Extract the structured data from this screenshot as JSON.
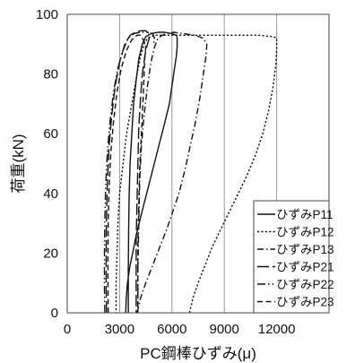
{
  "chart_data": {
    "type": "line",
    "xlabel": "PC鋼棒ひずみ(μ)",
    "ylabel": "荷重(kN)",
    "xlim": [
      0,
      15000
    ],
    "ylim": [
      0,
      100
    ],
    "x_ticks": [
      0,
      3000,
      6000,
      9000,
      12000
    ],
    "x_tick_labels": [
      "0",
      "3000",
      "6000",
      "9000",
      "12000"
    ],
    "y_ticks": [
      0,
      20,
      40,
      60,
      80,
      100
    ],
    "y_tick_labels": [
      "0",
      "20",
      "40",
      "60",
      "80",
      "100"
    ],
    "grid": "vertical",
    "legend_position": "bottom-right",
    "series": [
      {
        "name": "ひずみP11",
        "dash": "solid",
        "points": [
          [
            3350,
            0
          ],
          [
            3380,
            5
          ],
          [
            3450,
            10
          ],
          [
            3600,
            16
          ],
          [
            3750,
            20
          ],
          [
            3950,
            26
          ],
          [
            4200,
            32
          ],
          [
            4550,
            40
          ],
          [
            4900,
            48
          ],
          [
            5250,
            56
          ],
          [
            5600,
            64
          ],
          [
            5850,
            70
          ],
          [
            6000,
            76
          ],
          [
            6150,
            82
          ],
          [
            6250,
            86
          ],
          [
            6300,
            89
          ],
          [
            6300,
            92
          ],
          [
            6250,
            93
          ],
          [
            6000,
            93.5
          ],
          [
            5600,
            94
          ],
          [
            5200,
            94
          ],
          [
            4800,
            93.5
          ],
          [
            4500,
            92.5
          ],
          [
            4300,
            90
          ],
          [
            4100,
            85
          ],
          [
            3950,
            78
          ],
          [
            3800,
            70
          ],
          [
            3700,
            60
          ],
          [
            3600,
            50
          ],
          [
            3550,
            40
          ],
          [
            3520,
            28
          ],
          [
            3500,
            15
          ],
          [
            3500,
            5
          ],
          [
            3500,
            0
          ]
        ]
      },
      {
        "name": "ひずみP12",
        "dash": "dotted",
        "points": [
          [
            7000,
            0
          ],
          [
            7200,
            5
          ],
          [
            7500,
            10
          ],
          [
            7900,
            16
          ],
          [
            8300,
            22
          ],
          [
            8800,
            28
          ],
          [
            9300,
            34
          ],
          [
            9800,
            40
          ],
          [
            10300,
            46
          ],
          [
            10800,
            53
          ],
          [
            11200,
            60
          ],
          [
            11550,
            68
          ],
          [
            11800,
            76
          ],
          [
            11950,
            83
          ],
          [
            12000,
            88
          ],
          [
            12000,
            92
          ],
          [
            11800,
            92.5
          ],
          [
            11000,
            93
          ],
          [
            10000,
            93
          ],
          [
            9000,
            93
          ],
          [
            8000,
            93
          ],
          [
            7000,
            93
          ],
          [
            6000,
            93
          ],
          [
            5000,
            93
          ],
          [
            4600,
            92
          ],
          [
            4400,
            90
          ],
          [
            4200,
            86
          ],
          [
            4000,
            80
          ],
          [
            3700,
            70
          ],
          [
            3400,
            60
          ],
          [
            3200,
            50
          ],
          [
            3000,
            40
          ],
          [
            2900,
            30
          ],
          [
            2850,
            20
          ],
          [
            2800,
            10
          ],
          [
            2800,
            0
          ]
        ]
      },
      {
        "name": "ひずみP13",
        "dash": "dashdot",
        "points": [
          [
            4000,
            0
          ],
          [
            4200,
            5
          ],
          [
            4500,
            10
          ],
          [
            4900,
            16
          ],
          [
            5300,
            22
          ],
          [
            5700,
            28
          ],
          [
            6050,
            34
          ],
          [
            6400,
            40
          ],
          [
            6750,
            48
          ],
          [
            7050,
            56
          ],
          [
            7350,
            64
          ],
          [
            7600,
            72
          ],
          [
            7800,
            80
          ],
          [
            7950,
            86
          ],
          [
            8000,
            90
          ],
          [
            7800,
            92
          ],
          [
            7300,
            93
          ],
          [
            6700,
            93.5
          ],
          [
            6100,
            94
          ],
          [
            5600,
            93.5
          ],
          [
            5200,
            92
          ],
          [
            5000,
            89
          ],
          [
            4800,
            84
          ],
          [
            4600,
            76
          ],
          [
            4400,
            66
          ],
          [
            4250,
            56
          ],
          [
            4150,
            44
          ],
          [
            4100,
            30
          ],
          [
            4050,
            15
          ],
          [
            4050,
            0
          ]
        ]
      },
      {
        "name": "ひずみP21",
        "dash": "longdash",
        "points": [
          [
            2250,
            0
          ],
          [
            2230,
            8
          ],
          [
            2230,
            20
          ],
          [
            2250,
            32
          ],
          [
            2300,
            44
          ],
          [
            2400,
            56
          ],
          [
            2550,
            66
          ],
          [
            2750,
            76
          ],
          [
            3000,
            84
          ],
          [
            3300,
            90
          ],
          [
            3600,
            93
          ],
          [
            3900,
            94
          ],
          [
            4200,
            94.5
          ],
          [
            4500,
            94.5
          ],
          [
            4700,
            93.5
          ],
          [
            4700,
            92
          ],
          [
            4600,
            90
          ],
          [
            4500,
            88
          ],
          [
            4450,
            86
          ],
          [
            4300,
            80
          ],
          [
            4200,
            72
          ],
          [
            4100,
            62
          ],
          [
            4050,
            50
          ],
          [
            4000,
            38
          ],
          [
            3950,
            25
          ],
          [
            3950,
            12
          ],
          [
            3950,
            0
          ]
        ]
      },
      {
        "name": "ひずみP22",
        "dash": "dashdotdot",
        "points": [
          [
            2150,
            0
          ],
          [
            2130,
            8
          ],
          [
            2130,
            20
          ],
          [
            2150,
            30
          ],
          [
            2200,
            42
          ],
          [
            2300,
            54
          ],
          [
            2450,
            64
          ],
          [
            2650,
            74
          ],
          [
            2900,
            82
          ],
          [
            3200,
            88
          ],
          [
            3500,
            92
          ],
          [
            3800,
            93.5
          ],
          [
            4200,
            94
          ],
          [
            4600,
            94
          ],
          [
            4900,
            93.5
          ],
          [
            5000,
            92
          ],
          [
            4950,
            90
          ]
        ]
      },
      {
        "name": "ひずみP23",
        "dash": "dash",
        "points": [
          [
            2350,
            0
          ],
          [
            2330,
            8
          ],
          [
            2330,
            20
          ],
          [
            2350,
            30
          ],
          [
            2400,
            42
          ],
          [
            2500,
            54
          ],
          [
            2650,
            64
          ],
          [
            2850,
            74
          ],
          [
            3100,
            82
          ],
          [
            3400,
            88
          ],
          [
            3700,
            91.5
          ],
          [
            4000,
            93
          ],
          [
            4200,
            93
          ],
          [
            4400,
            91
          ],
          [
            4500,
            89
          ],
          [
            4450,
            86
          ],
          [
            4400,
            80
          ],
          [
            4350,
            72
          ],
          [
            4250,
            60
          ],
          [
            4150,
            48
          ],
          [
            4100,
            36
          ],
          [
            4050,
            24
          ],
          [
            4050,
            12
          ],
          [
            4050,
            0
          ]
        ]
      }
    ]
  }
}
